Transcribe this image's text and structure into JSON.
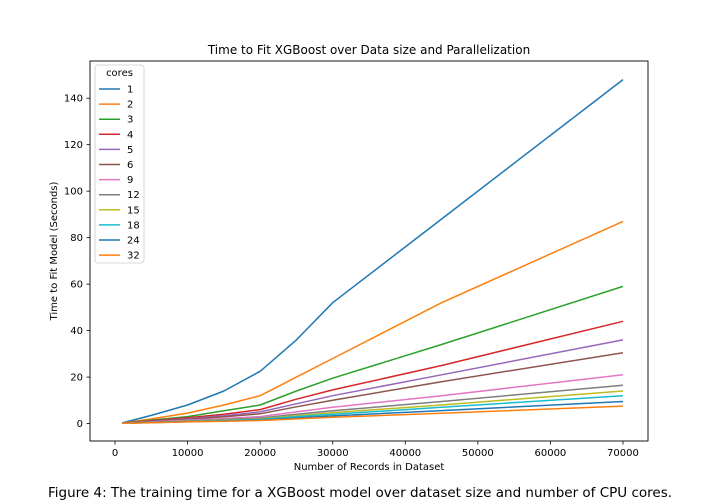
{
  "caption": "Figure 4: The training time for a XGBoost model over dataset size and number of CPU cores.",
  "chart_data": {
    "type": "line",
    "title": "Time to Fit XGBoost over Data size and Parallelization",
    "xlabel": "Number of Records in Dataset",
    "ylabel": "Time to Fit Model (Seconds)",
    "xlim": [
      -3450,
      73450
    ],
    "ylim": [
      -7.5,
      156
    ],
    "xticks": [
      0,
      10000,
      20000,
      30000,
      40000,
      50000,
      60000,
      70000
    ],
    "yticks": [
      0,
      20,
      40,
      60,
      80,
      100,
      120,
      140
    ],
    "grid": false,
    "legend": {
      "title": "cores",
      "placement": "top-left"
    },
    "x": [
      1000,
      5000,
      10000,
      15000,
      20000,
      25000,
      30000,
      45000,
      70000
    ],
    "series": [
      {
        "name": "1",
        "color": "#1f77b4",
        "values": [
          0.3,
          3.5,
          8.0,
          14.0,
          22.5,
          36.0,
          52.0,
          88.0,
          148.0
        ]
      },
      {
        "name": "2",
        "color": "#ff7f0e",
        "values": [
          0.2,
          2.0,
          4.5,
          8.0,
          12.0,
          20.0,
          28.0,
          52.0,
          87.0
        ]
      },
      {
        "name": "3",
        "color": "#2ca02c",
        "values": [
          0.2,
          1.5,
          3.0,
          5.5,
          8.0,
          14.0,
          19.5,
          34.0,
          59.0
        ]
      },
      {
        "name": "4",
        "color": "#d62728",
        "values": [
          0.15,
          1.2,
          2.5,
          4.0,
          6.0,
          10.5,
          14.5,
          25.0,
          44.0
        ]
      },
      {
        "name": "5",
        "color": "#9467bd",
        "values": [
          0.15,
          1.0,
          2.1,
          3.4,
          5.0,
          8.5,
          12.0,
          21.0,
          36.0
        ]
      },
      {
        "name": "6",
        "color": "#8c564b",
        "values": [
          0.1,
          0.9,
          1.8,
          2.9,
          4.2,
          7.2,
          10.0,
          18.0,
          30.5
        ]
      },
      {
        "name": "9",
        "color": "#e377c2",
        "values": [
          0.1,
          0.7,
          1.4,
          2.2,
          3.0,
          5.0,
          7.0,
          12.0,
          21.0
        ]
      },
      {
        "name": "12",
        "color": "#7f7f7f",
        "values": [
          0.1,
          0.6,
          1.1,
          1.7,
          2.4,
          4.0,
          5.5,
          9.5,
          16.5
        ]
      },
      {
        "name": "15",
        "color": "#bcbd22",
        "values": [
          0.1,
          0.5,
          1.0,
          1.5,
          2.0,
          3.4,
          4.7,
          8.0,
          14.0
        ]
      },
      {
        "name": "18",
        "color": "#17becf",
        "values": [
          0.1,
          0.45,
          0.9,
          1.3,
          1.8,
          3.0,
          4.0,
          7.0,
          12.0
        ]
      },
      {
        "name": "24",
        "color": "#1f77b4",
        "values": [
          0.1,
          0.4,
          0.8,
          1.1,
          1.5,
          2.4,
          3.3,
          5.6,
          9.5
        ]
      },
      {
        "name": "32",
        "color": "#ff7f0e",
        "values": [
          0.1,
          0.35,
          0.7,
          1.0,
          1.3,
          2.0,
          2.7,
          4.4,
          7.5
        ]
      }
    ]
  }
}
